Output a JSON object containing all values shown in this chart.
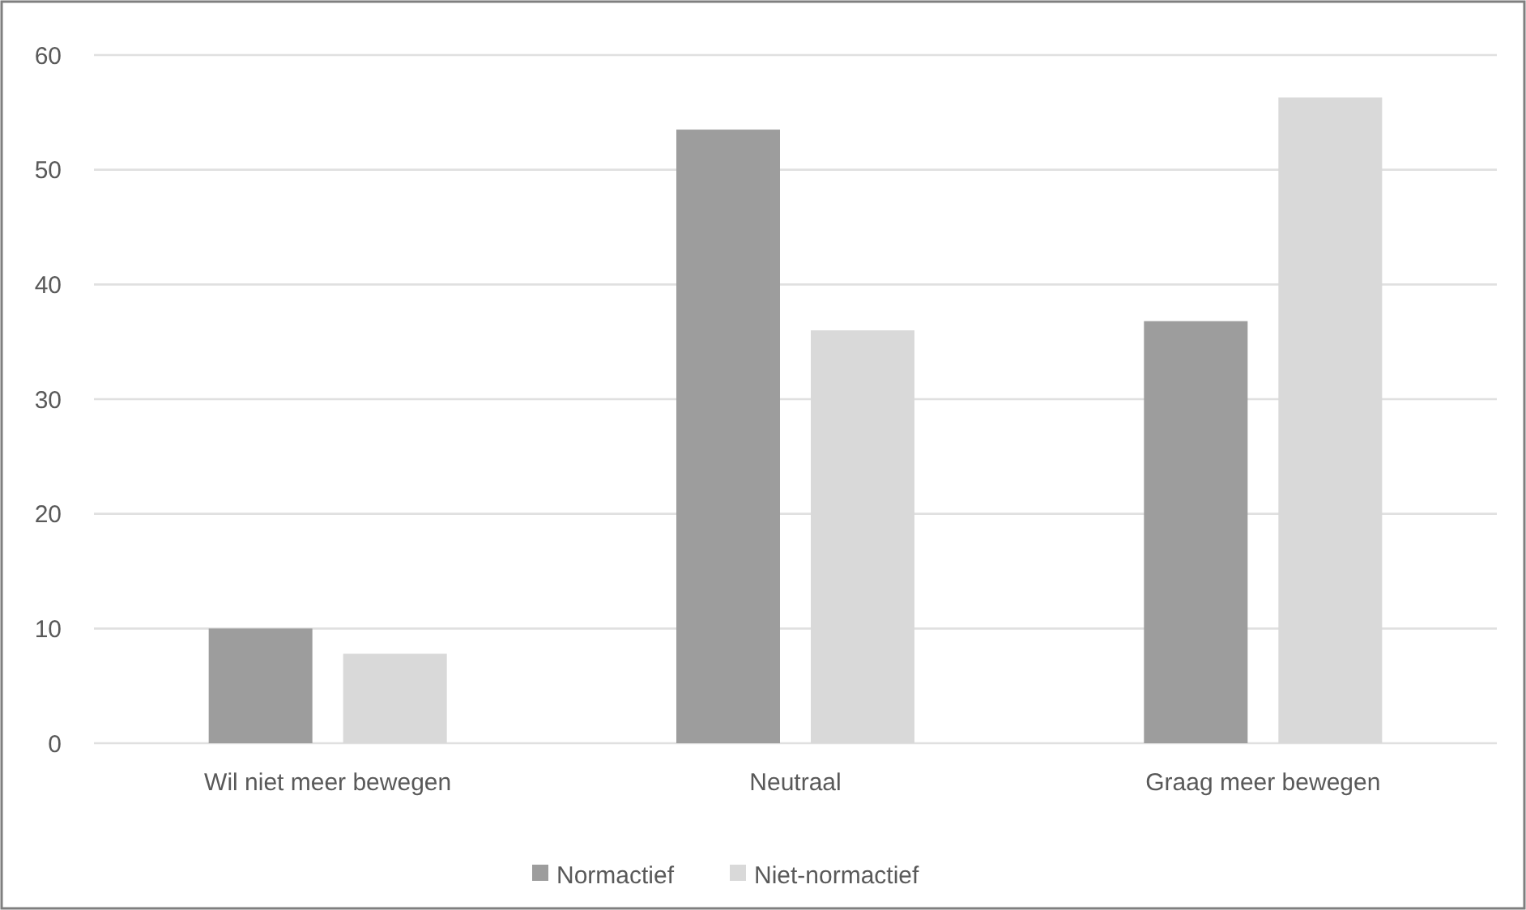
{
  "chart_data": {
    "type": "bar",
    "categories": [
      "Wil niet meer bewegen",
      "Neutraal",
      "Graag meer bewegen"
    ],
    "series": [
      {
        "name": "Normactief",
        "color": "#9d9d9d",
        "values": [
          10.0,
          53.5,
          36.8
        ]
      },
      {
        "name": "Niet-normactief",
        "color": "#d9d9d9",
        "values": [
          7.8,
          36.0,
          56.3
        ]
      }
    ],
    "ylim": [
      0,
      60
    ],
    "yticks": [
      0,
      10,
      20,
      30,
      40,
      50,
      60
    ],
    "grid": "y",
    "legend": "bottom"
  }
}
